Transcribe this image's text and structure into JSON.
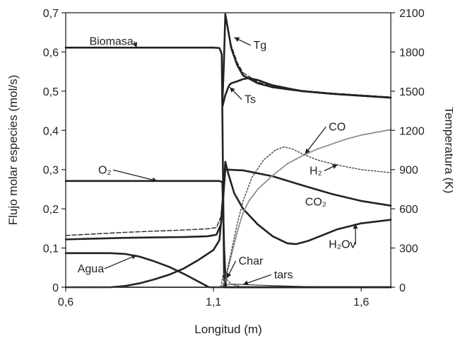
{
  "chart_data": {
    "type": "line",
    "title": "",
    "xlabel": "Longitud (m)",
    "ylabel_left": "Flujo molar especies (mol/s)",
    "ylabel_right": "Temperatura (K)",
    "xlim": [
      0.6,
      1.7
    ],
    "ylim_left": [
      0,
      0.7
    ],
    "ylim_right": [
      0,
      2100
    ],
    "x_ticks": [
      0.6,
      1.1,
      1.6
    ],
    "x_tick_labels": [
      "0,6",
      "1,1",
      "1,6"
    ],
    "y_left_ticks": [
      0,
      0.1,
      0.2,
      0.3,
      0.4,
      0.5,
      0.6,
      0.7
    ],
    "y_left_tick_labels": [
      "0",
      "0,1",
      "0,2",
      "0,3",
      "0,4",
      "0,5",
      "0,6",
      "0,7"
    ],
    "y_right_ticks": [
      0,
      300,
      600,
      900,
      1200,
      1500,
      1800,
      2100
    ],
    "y_right_tick_labels": [
      "0",
      "300",
      "600",
      "900",
      "1200",
      "1500",
      "1800",
      "2100"
    ],
    "grid": false,
    "legend": "none",
    "series": [
      {
        "name": "Biomasa",
        "axis": "left",
        "style": "solid",
        "color": "#222222",
        "width": 2.6,
        "points": [
          [
            0.6,
            0.611
          ],
          [
            0.7,
            0.611
          ],
          [
            0.8,
            0.611
          ],
          [
            0.9,
            0.611
          ],
          [
            1.0,
            0.611
          ],
          [
            1.1,
            0.611
          ],
          [
            1.12,
            0.61
          ],
          [
            1.128,
            0.595
          ],
          [
            1.132,
            0.3
          ],
          [
            1.136,
            0.02
          ],
          [
            1.14,
            0.0
          ],
          [
            1.7,
            0.0
          ]
        ]
      },
      {
        "name": "O2",
        "axis": "left",
        "style": "solid",
        "color": "#222222",
        "width": 2.6,
        "points": [
          [
            0.6,
            0.271
          ],
          [
            0.8,
            0.271
          ],
          [
            1.0,
            0.271
          ],
          [
            1.12,
            0.271
          ],
          [
            1.13,
            0.268
          ],
          [
            1.136,
            0.1
          ],
          [
            1.142,
            0.0
          ],
          [
            1.7,
            0.0
          ]
        ]
      },
      {
        "name": "Agua",
        "axis": "left",
        "style": "solid",
        "color": "#222222",
        "width": 2.6,
        "points": [
          [
            0.6,
            0.087
          ],
          [
            0.75,
            0.087
          ],
          [
            0.8,
            0.085
          ],
          [
            0.85,
            0.078
          ],
          [
            0.9,
            0.066
          ],
          [
            0.95,
            0.052
          ],
          [
            1.0,
            0.034
          ],
          [
            1.04,
            0.018
          ],
          [
            1.07,
            0.006
          ],
          [
            1.085,
            0.0
          ],
          [
            1.7,
            0.0
          ]
        ]
      },
      {
        "name": "H2Ov",
        "axis": "left",
        "style": "solid",
        "color": "#222222",
        "width": 2.6,
        "points": [
          [
            0.6,
            0.122
          ],
          [
            0.7,
            0.124
          ],
          [
            0.8,
            0.126
          ],
          [
            0.9,
            0.127
          ],
          [
            1.0,
            0.128
          ],
          [
            1.08,
            0.13
          ],
          [
            1.11,
            0.134
          ],
          [
            1.125,
            0.16
          ],
          [
            1.135,
            0.26
          ],
          [
            1.14,
            0.32
          ],
          [
            1.15,
            0.29
          ],
          [
            1.17,
            0.24
          ],
          [
            1.2,
            0.2
          ],
          [
            1.25,
            0.16
          ],
          [
            1.3,
            0.13
          ],
          [
            1.35,
            0.112
          ],
          [
            1.38,
            0.11
          ],
          [
            1.42,
            0.118
          ],
          [
            1.46,
            0.13
          ],
          [
            1.52,
            0.148
          ],
          [
            1.6,
            0.163
          ],
          [
            1.7,
            0.172
          ]
        ]
      },
      {
        "name": "H2Ov (dashed)",
        "axis": "left",
        "style": "dashed",
        "color": "#222222",
        "width": 1.4,
        "points": [
          [
            0.6,
            0.132
          ],
          [
            0.7,
            0.136
          ],
          [
            0.8,
            0.14
          ],
          [
            0.9,
            0.143
          ],
          [
            1.0,
            0.146
          ],
          [
            1.08,
            0.149
          ],
          [
            1.11,
            0.152
          ],
          [
            1.125,
            0.18
          ],
          [
            1.135,
            0.27
          ],
          [
            1.14,
            0.32
          ]
        ]
      },
      {
        "name": "CO2",
        "axis": "left",
        "style": "solid",
        "color": "#222222",
        "width": 2.6,
        "points": [
          [
            0.6,
            0.0
          ],
          [
            0.75,
            0.0
          ],
          [
            0.8,
            0.003
          ],
          [
            0.85,
            0.01
          ],
          [
            0.9,
            0.02
          ],
          [
            0.95,
            0.032
          ],
          [
            1.0,
            0.048
          ],
          [
            1.05,
            0.07
          ],
          [
            1.08,
            0.085
          ],
          [
            1.1,
            0.095
          ],
          [
            1.12,
            0.12
          ],
          [
            1.13,
            0.2
          ],
          [
            1.14,
            0.3
          ],
          [
            1.2,
            0.298
          ],
          [
            1.3,
            0.283
          ],
          [
            1.4,
            0.26
          ],
          [
            1.5,
            0.238
          ],
          [
            1.6,
            0.22
          ],
          [
            1.7,
            0.208
          ]
        ]
      },
      {
        "name": "CO",
        "axis": "left",
        "style": "gray",
        "color": "#909090",
        "width": 1.8,
        "points": [
          [
            0.6,
            0.0
          ],
          [
            1.13,
            0.0
          ],
          [
            1.14,
            0.02
          ],
          [
            1.16,
            0.08
          ],
          [
            1.18,
            0.14
          ],
          [
            1.2,
            0.19
          ],
          [
            1.22,
            0.22
          ],
          [
            1.25,
            0.25
          ],
          [
            1.3,
            0.285
          ],
          [
            1.35,
            0.315
          ],
          [
            1.4,
            0.335
          ],
          [
            1.45,
            0.352
          ],
          [
            1.5,
            0.365
          ],
          [
            1.55,
            0.378
          ],
          [
            1.6,
            0.388
          ],
          [
            1.7,
            0.402
          ]
        ]
      },
      {
        "name": "H2",
        "axis": "left",
        "style": "dotted",
        "color": "#444444",
        "width": 1.4,
        "points": [
          [
            0.6,
            0.0
          ],
          [
            1.13,
            0.0
          ],
          [
            1.14,
            0.02
          ],
          [
            1.16,
            0.09
          ],
          [
            1.18,
            0.16
          ],
          [
            1.2,
            0.22
          ],
          [
            1.23,
            0.28
          ],
          [
            1.27,
            0.325
          ],
          [
            1.31,
            0.35
          ],
          [
            1.34,
            0.358
          ],
          [
            1.37,
            0.352
          ],
          [
            1.4,
            0.34
          ],
          [
            1.45,
            0.325
          ],
          [
            1.5,
            0.315
          ],
          [
            1.55,
            0.307
          ],
          [
            1.6,
            0.3
          ],
          [
            1.7,
            0.292
          ]
        ]
      },
      {
        "name": "Char",
        "axis": "left",
        "style": "dotted",
        "color": "#444444",
        "width": 1.4,
        "points": [
          [
            0.6,
            0.0
          ],
          [
            1.125,
            0.0
          ],
          [
            1.132,
            0.03
          ],
          [
            1.138,
            0.038
          ],
          [
            1.145,
            0.02
          ],
          [
            1.16,
            0.008
          ],
          [
            1.2,
            0.0
          ],
          [
            1.7,
            0.0
          ]
        ]
      },
      {
        "name": "tars",
        "axis": "left",
        "style": "solid-thin",
        "color": "#222222",
        "width": 1.0,
        "points": [
          [
            0.6,
            0.0
          ],
          [
            1.13,
            0.0
          ],
          [
            1.14,
            0.006
          ],
          [
            1.16,
            0.008
          ],
          [
            1.2,
            0.007
          ],
          [
            1.3,
            0.004
          ],
          [
            1.4,
            0.002
          ],
          [
            1.5,
            0.001
          ],
          [
            1.7,
            0.0
          ]
        ]
      },
      {
        "name": "Tg",
        "axis": "right",
        "style": "solid",
        "color": "#222222",
        "width": 2.6,
        "points": [
          [
            1.13,
            1400
          ],
          [
            1.135,
            1700
          ],
          [
            1.14,
            2090
          ],
          [
            1.15,
            1960
          ],
          [
            1.16,
            1830
          ],
          [
            1.18,
            1700
          ],
          [
            1.2,
            1620
          ],
          [
            1.25,
            1560
          ],
          [
            1.3,
            1530
          ],
          [
            1.4,
            1500
          ],
          [
            1.5,
            1480
          ],
          [
            1.6,
            1465
          ],
          [
            1.7,
            1450
          ]
        ]
      },
      {
        "name": "Tg (dashed)",
        "axis": "right",
        "style": "dashed",
        "color": "#222222",
        "width": 1.4,
        "points": [
          [
            1.13,
            1400
          ],
          [
            1.135,
            1700
          ],
          [
            1.14,
            2070
          ],
          [
            1.15,
            1970
          ],
          [
            1.16,
            1850
          ],
          [
            1.18,
            1720
          ],
          [
            1.2,
            1640
          ],
          [
            1.25,
            1570
          ],
          [
            1.3,
            1535
          ],
          [
            1.4,
            1505
          ],
          [
            1.5,
            1485
          ],
          [
            1.6,
            1470
          ],
          [
            1.7,
            1455
          ]
        ]
      },
      {
        "name": "Ts",
        "axis": "right",
        "style": "solid",
        "color": "#222222",
        "width": 2.6,
        "points": [
          [
            1.13,
            1380
          ],
          [
            1.14,
            1470
          ],
          [
            1.15,
            1530
          ],
          [
            1.155,
            1550
          ],
          [
            1.16,
            1560
          ],
          [
            1.18,
            1575
          ],
          [
            1.2,
            1592
          ],
          [
            1.22,
            1600
          ],
          [
            1.25,
            1585
          ],
          [
            1.3,
            1545
          ],
          [
            1.4,
            1500
          ],
          [
            1.5,
            1480
          ],
          [
            1.6,
            1465
          ],
          [
            1.7,
            1450
          ]
        ]
      }
    ],
    "annotations": [
      {
        "text": "Biomasa",
        "x": 0.68,
        "y": 0.618,
        "arrow_to": [
          0.84,
          0.611
        ]
      },
      {
        "text": "O₂",
        "x": 0.71,
        "y": 0.29,
        "arrow_to": [
          0.91,
          0.271
        ]
      },
      {
        "text": "Agua",
        "x": 0.64,
        "y": 0.038,
        "arrow_to": [
          0.84,
          0.082
        ]
      },
      {
        "text": "Tg",
        "x": 1.235,
        "y": 0.608,
        "arrow_to": [
          1.17,
          0.637
        ]
      },
      {
        "text": "Ts",
        "x": 1.205,
        "y": 0.47,
        "arrow_to": [
          1.155,
          0.51
        ]
      },
      {
        "text": "CO",
        "x": 1.49,
        "y": 0.4,
        "arrow_to": [
          1.41,
          0.34
        ]
      },
      {
        "text": "H₂",
        "x": 1.425,
        "y": 0.288,
        "arrow_to": [
          1.52,
          0.313
        ]
      },
      {
        "text": "CO₂",
        "x": 1.41,
        "y": 0.208
      },
      {
        "text": "H₂Ov",
        "x": 1.49,
        "y": 0.1,
        "arrow_to": [
          1.58,
          0.162
        ]
      },
      {
        "text": "Char",
        "x": 1.185,
        "y": 0.058,
        "arrow_to": [
          1.145,
          0.023
        ]
      },
      {
        "text": "tars",
        "x": 1.305,
        "y": 0.023,
        "arrow_to": [
          1.2,
          0.007
        ]
      }
    ]
  }
}
